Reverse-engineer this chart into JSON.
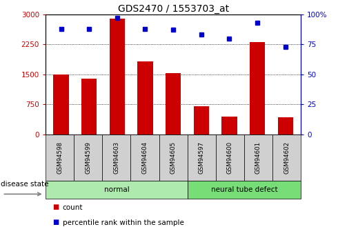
{
  "title": "GDS2470 / 1553703_at",
  "samples": [
    "GSM94598",
    "GSM94599",
    "GSM94603",
    "GSM94604",
    "GSM94605",
    "GSM94597",
    "GSM94600",
    "GSM94601",
    "GSM94602"
  ],
  "counts": [
    1500,
    1390,
    2900,
    1820,
    1530,
    700,
    450,
    2300,
    430
  ],
  "percentiles": [
    88,
    88,
    97,
    88,
    87,
    83,
    80,
    93,
    73
  ],
  "bar_color": "#CC0000",
  "dot_color": "#0000CC",
  "ylim_left": [
    0,
    3000
  ],
  "ylim_right": [
    0,
    100
  ],
  "yticks_left": [
    0,
    750,
    1500,
    2250,
    3000
  ],
  "yticks_right": [
    0,
    25,
    50,
    75,
    100
  ],
  "groups": [
    {
      "label": "normal",
      "indices": [
        0,
        1,
        2,
        3,
        4
      ]
    },
    {
      "label": "neural tube defect",
      "indices": [
        5,
        6,
        7,
        8
      ]
    }
  ],
  "group_colors": [
    "#AEEAAE",
    "#77DD77"
  ],
  "disease_state_label": "disease state",
  "legend_count_label": "count",
  "legend_pct_label": "percentile rank within the sample",
  "tick_box_color": "#D0D0D0"
}
